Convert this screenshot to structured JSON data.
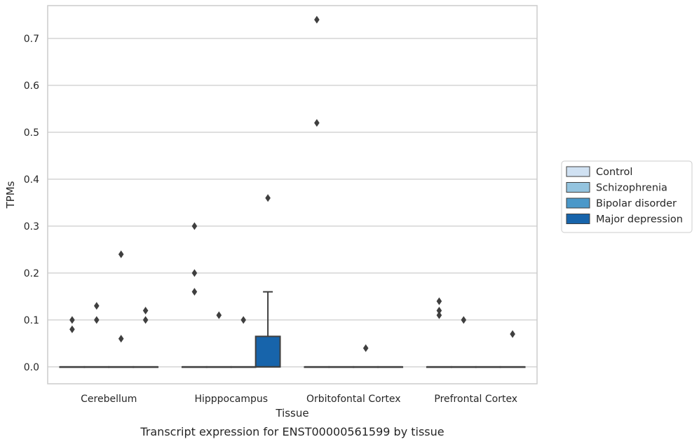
{
  "chart_data": {
    "type": "box",
    "title": "",
    "caption": "Transcript expression for ENST00000561599 by tissue",
    "xlabel": "Tissue",
    "ylabel": "TPMs",
    "ylim": [
      -0.036,
      0.77
    ],
    "yticks": [
      "0.0",
      "0.1",
      "0.2",
      "0.3",
      "0.4",
      "0.5",
      "0.6",
      "0.7"
    ],
    "grid": "horizontal",
    "legend_position": "right",
    "categories": [
      "Cerebellum",
      "Hipppocampus",
      "Orbitofontal Cortex",
      "Prefrontal Cortex"
    ],
    "series": [
      {
        "name": "Control",
        "color": "#d0e1f2",
        "boxes": [
          {
            "q1": 0,
            "median": 0,
            "q3": 0,
            "whisker_low": 0,
            "whisker_high": 0,
            "outliers": [
              0.08,
              0.1
            ]
          },
          {
            "q1": 0,
            "median": 0,
            "q3": 0,
            "whisker_low": 0,
            "whisker_high": 0,
            "outliers": [
              0.16,
              0.2,
              0.3
            ]
          },
          {
            "q1": 0,
            "median": 0,
            "q3": 0,
            "whisker_low": 0,
            "whisker_high": 0,
            "outliers": [
              0.52,
              0.74
            ]
          },
          {
            "q1": 0,
            "median": 0,
            "q3": 0,
            "whisker_low": 0,
            "whisker_high": 0,
            "outliers": [
              0.11,
              0.12,
              0.14
            ]
          }
        ]
      },
      {
        "name": "Schizophrenia",
        "color": "#94c4df",
        "boxes": [
          {
            "q1": 0,
            "median": 0,
            "q3": 0,
            "whisker_low": 0,
            "whisker_high": 0,
            "outliers": [
              0.1,
              0.13
            ]
          },
          {
            "q1": 0,
            "median": 0,
            "q3": 0,
            "whisker_low": 0,
            "whisker_high": 0,
            "outliers": [
              0.11
            ]
          },
          {
            "q1": 0,
            "median": 0,
            "q3": 0,
            "whisker_low": 0,
            "whisker_high": 0,
            "outliers": []
          },
          {
            "q1": 0,
            "median": 0,
            "q3": 0,
            "whisker_low": 0,
            "whisker_high": 0,
            "outliers": [
              0.1
            ]
          }
        ]
      },
      {
        "name": "Bipolar disorder",
        "color": "#4a98c9",
        "boxes": [
          {
            "q1": 0,
            "median": 0,
            "q3": 0,
            "whisker_low": 0,
            "whisker_high": 0,
            "outliers": [
              0.06,
              0.24
            ]
          },
          {
            "q1": 0,
            "median": 0,
            "q3": 0,
            "whisker_low": 0,
            "whisker_high": 0,
            "outliers": [
              0.1
            ]
          },
          {
            "q1": 0,
            "median": 0,
            "q3": 0,
            "whisker_low": 0,
            "whisker_high": 0,
            "outliers": [
              0.04
            ]
          },
          {
            "q1": 0,
            "median": 0,
            "q3": 0,
            "whisker_low": 0,
            "whisker_high": 0,
            "outliers": []
          }
        ]
      },
      {
        "name": "Major depression",
        "color": "#1764ab",
        "boxes": [
          {
            "q1": 0,
            "median": 0,
            "q3": 0,
            "whisker_low": 0,
            "whisker_high": 0,
            "outliers": [
              0.1,
              0.12
            ]
          },
          {
            "q1": 0,
            "median": 0,
            "q3": 0.065,
            "whisker_low": 0,
            "whisker_high": 0.16,
            "outliers": [
              0.36
            ]
          },
          {
            "q1": 0,
            "median": 0,
            "q3": 0,
            "whisker_low": 0,
            "whisker_high": 0,
            "outliers": []
          },
          {
            "q1": 0,
            "median": 0,
            "q3": 0,
            "whisker_low": 0,
            "whisker_high": 0,
            "outliers": [
              0.07
            ]
          }
        ]
      }
    ]
  }
}
